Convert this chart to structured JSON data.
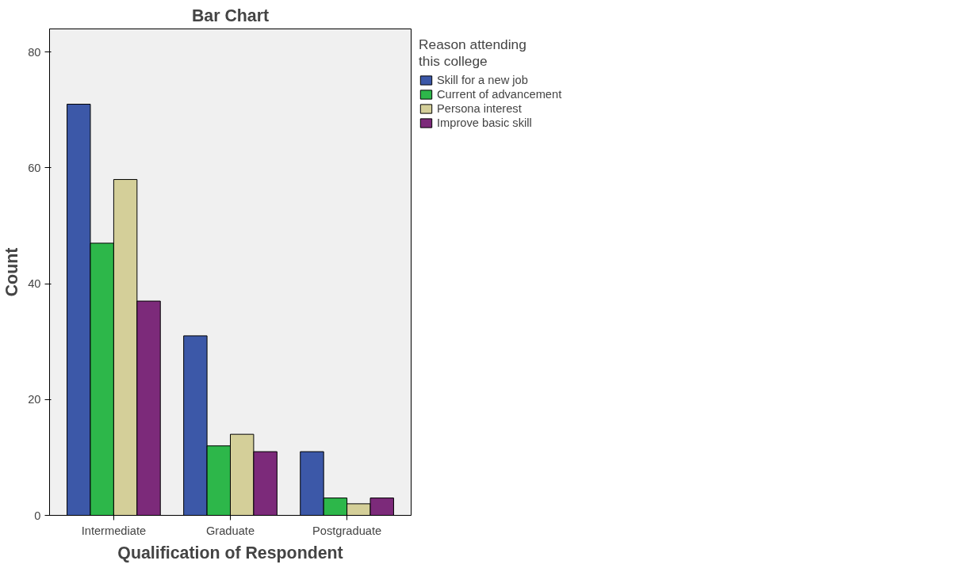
{
  "chart_data": {
    "type": "bar",
    "title": "Bar Chart",
    "xlabel": "Qualification of Respondent",
    "ylabel": "Count",
    "legend_title": "Reason attending this college",
    "categories": [
      "Intermediate",
      "Graduate",
      "Postgraduate"
    ],
    "series": [
      {
        "name": "Skill for a new job",
        "color": "#3c58a8",
        "values": [
          71,
          31,
          11
        ]
      },
      {
        "name": "Current of advancement",
        "color": "#2db74a",
        "values": [
          47,
          12,
          3
        ]
      },
      {
        "name": "Persona interest",
        "color": "#d4cf99",
        "values": [
          58,
          14,
          2
        ]
      },
      {
        "name": "Improve basic skill",
        "color": "#7c2a7a",
        "values": [
          37,
          11,
          3
        ]
      }
    ],
    "ylim": [
      0,
      84
    ],
    "yticks": [
      0,
      20,
      40,
      60,
      80
    ],
    "grid": false,
    "legend": "right"
  }
}
